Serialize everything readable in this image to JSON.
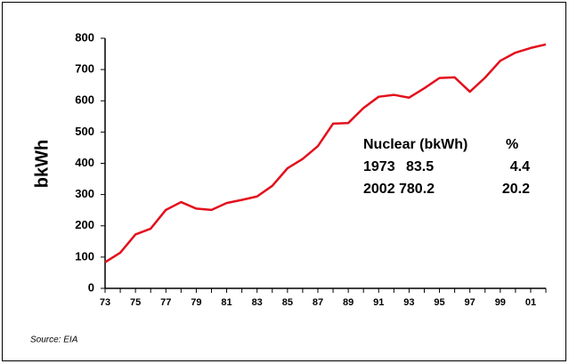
{
  "chart_data": {
    "type": "line",
    "y_label": "bkWh",
    "source": "Source: EIA",
    "categories": [
      "73",
      null,
      "75",
      null,
      "77",
      null,
      "79",
      null,
      "81",
      null,
      "83",
      null,
      "85",
      null,
      "87",
      null,
      "89",
      null,
      "91",
      null,
      "93",
      null,
      "95",
      null,
      "97",
      null,
      "99",
      null,
      "01",
      null
    ],
    "series": [
      {
        "name": "Nuclear",
        "color": "#e3101c",
        "values": [
          83.5,
          114,
          172.5,
          191,
          251,
          276,
          255,
          251,
          273,
          283,
          294,
          328,
          384,
          414,
          455,
          527,
          529,
          577,
          613,
          619,
          610,
          640,
          673,
          675,
          629,
          674,
          728,
          754,
          769,
          780.2
        ]
      }
    ],
    "ylim": [
      0,
      800
    ],
    "yticks": [
      0,
      100,
      200,
      300,
      400,
      500,
      600,
      700,
      800
    ],
    "annotation": {
      "header": [
        "Nuclear (bkWh)",
        "%"
      ],
      "rows": [
        [
          "1973",
          "83.5",
          "4.4"
        ],
        [
          "2002",
          "780.2",
          "20.2"
        ]
      ]
    }
  }
}
